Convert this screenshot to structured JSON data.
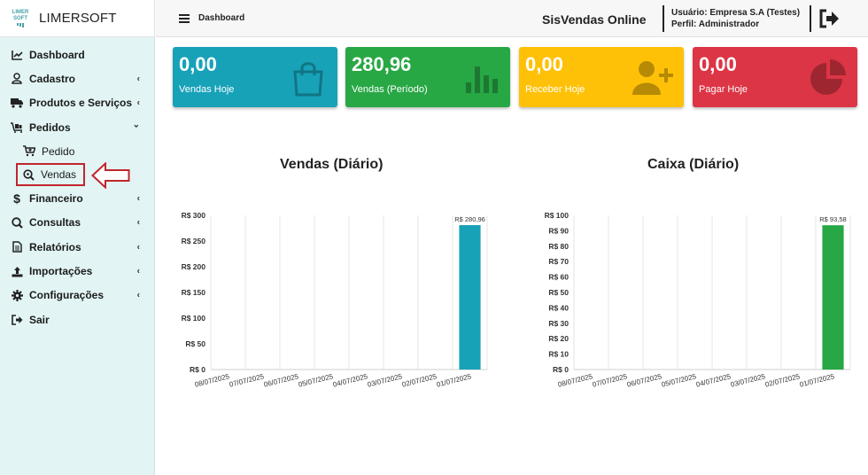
{
  "brand": {
    "logo_text_1": "LIMER",
    "logo_text_2": "SOFT",
    "name": "LIMERSOFT"
  },
  "header": {
    "breadcrumb": "Dashboard",
    "app_title": "SisVendas Online",
    "user_line": "Usuário: Empresa S.A (Testes)",
    "profile_line": "Perfil: Administrador"
  },
  "sidebar": {
    "items": [
      {
        "label": "Dashboard",
        "icon": "chart-line-icon",
        "chevron": ""
      },
      {
        "label": "Cadastro",
        "icon": "user-icon",
        "chevron": "‹"
      },
      {
        "label": "Produtos e Serviços",
        "icon": "truck-icon",
        "chevron": "‹"
      },
      {
        "label": "Pedidos",
        "icon": "cart-flatbed-icon",
        "chevron": "⌄"
      },
      {
        "label": "Pedido",
        "icon": "cart-plus-icon",
        "chevron": ""
      },
      {
        "label": "Vendas",
        "icon": "search-dollar-icon",
        "chevron": ""
      },
      {
        "label": "Financeiro",
        "icon": "dollar-icon",
        "chevron": "‹"
      },
      {
        "label": "Consultas",
        "icon": "search-icon",
        "chevron": "‹"
      },
      {
        "label": "Relatórios",
        "icon": "file-icon",
        "chevron": "‹"
      },
      {
        "label": "Importações",
        "icon": "upload-icon",
        "chevron": "‹"
      },
      {
        "label": "Configurações",
        "icon": "gear-icon",
        "chevron": "‹"
      },
      {
        "label": "Sair",
        "icon": "sign-out-icon",
        "chevron": ""
      }
    ]
  },
  "cards": [
    {
      "value": "0,00",
      "label": "Vendas Hoje",
      "color": "#17a2b8",
      "icon": "shopping-bag-icon"
    },
    {
      "value": "280,96",
      "label": "Vendas (Período)",
      "color": "#28a745",
      "icon": "bar-chart-icon"
    },
    {
      "value": "0,00",
      "label": "Receber Hoje",
      "color": "#ffc107",
      "icon": "user-plus-icon"
    },
    {
      "value": "0,00",
      "label": "Pagar Hoje",
      "color": "#dc3545",
      "icon": "pie-chart-icon"
    }
  ],
  "chart_data": [
    {
      "type": "bar",
      "title": "Vendas (Diário)",
      "categories": [
        "08/07/2025",
        "07/07/2025",
        "06/07/2025",
        "05/07/2025",
        "04/07/2025",
        "03/07/2025",
        "02/07/2025",
        "01/07/2025"
      ],
      "values": [
        0,
        0,
        0,
        0,
        0,
        0,
        0,
        280.96
      ],
      "data_labels": [
        "",
        "",
        "",
        "",
        "",
        "",
        "",
        "R$ 280,96"
      ],
      "yticks": [
        0,
        50,
        100,
        150,
        200,
        250,
        300
      ],
      "ytick_labels": [
        "R$ 0",
        "R$ 50",
        "R$ 100",
        "R$ 150",
        "R$ 200",
        "R$ 250",
        "R$ 300"
      ],
      "ylim": [
        0,
        300
      ],
      "color": "#17a2b8",
      "grid": "vertical"
    },
    {
      "type": "bar",
      "title": "Caixa (Diário)",
      "categories": [
        "08/07/2025",
        "07/07/2025",
        "06/07/2025",
        "05/07/2025",
        "04/07/2025",
        "03/07/2025",
        "02/07/2025",
        "01/07/2025"
      ],
      "values": [
        0,
        0,
        0,
        0,
        0,
        0,
        0,
        93.58
      ],
      "data_labels": [
        "",
        "",
        "",
        "",
        "",
        "",
        "",
        "R$ 93,58"
      ],
      "yticks": [
        0,
        10,
        20,
        30,
        40,
        50,
        60,
        70,
        80,
        90,
        100
      ],
      "ytick_labels": [
        "R$ 0",
        "R$ 10",
        "R$ 20",
        "R$ 30",
        "R$ 40",
        "R$ 50",
        "R$ 60",
        "R$ 70",
        "R$ 80",
        "R$ 90",
        "R$ 100"
      ],
      "ylim": [
        0,
        100
      ],
      "color": "#28a745",
      "grid": "vertical"
    }
  ]
}
